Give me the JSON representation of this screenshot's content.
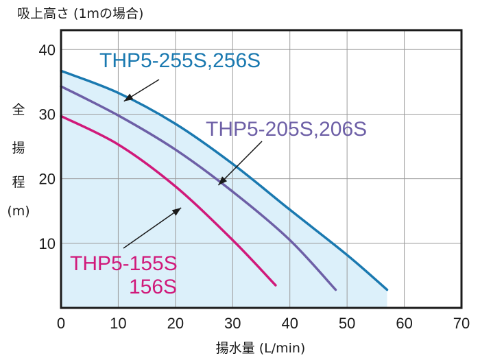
{
  "chart_data": {
    "type": "line",
    "top_label": "吸上高さ (1mの場合)",
    "xlabel": "揚水量 (L/min)",
    "ylabel_chars": [
      "全",
      "揚",
      "程",
      "(m)"
    ],
    "xlim": [
      0,
      70
    ],
    "ylim": [
      0,
      43
    ],
    "x_ticks": [
      0,
      10,
      20,
      30,
      40,
      50,
      60,
      70
    ],
    "y_ticks": [
      10,
      20,
      30,
      40
    ],
    "grid": true,
    "series": [
      {
        "name": "THP5-255S,256S",
        "color": "#1a79b0",
        "x": [
          0,
          10,
          20,
          30,
          40,
          50,
          57
        ],
        "y": [
          36.7,
          33.3,
          28.5,
          22.3,
          15.2,
          8.2,
          2.8
        ]
      },
      {
        "name": "THP5-205S,206S",
        "color": "#6d5fa6",
        "x": [
          0,
          10,
          20,
          30,
          40,
          48
        ],
        "y": [
          34.3,
          29.8,
          24.5,
          18.0,
          10.5,
          2.8
        ]
      },
      {
        "name": "THP5-155S",
        "name_line2": "156S",
        "color": "#d0197a",
        "x": [
          0,
          10,
          20,
          30,
          37.5
        ],
        "y": [
          29.7,
          25.3,
          18.8,
          10.5,
          3.5
        ]
      }
    ],
    "shaded_region": {
      "color": "#dcf0fa",
      "under_series": "THP5-255S,256S"
    },
    "annotations": [
      {
        "label": "THP5-255S,256S",
        "arrow_to": [
          11,
          32
        ]
      },
      {
        "label": "THP5-205S,206S",
        "arrow_to": [
          27.5,
          19
        ]
      },
      {
        "label": "THP5-155S",
        "arrow_to": [
          21,
          15.5
        ]
      }
    ]
  }
}
